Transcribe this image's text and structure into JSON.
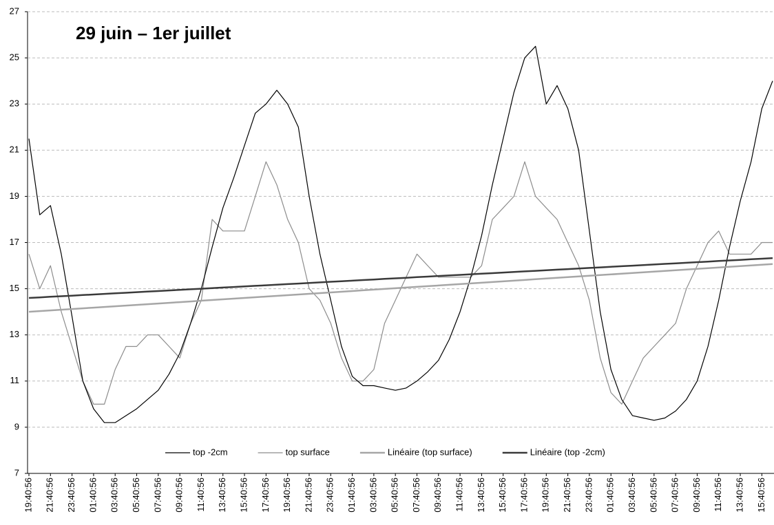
{
  "chart_data": {
    "type": "line",
    "title": "29 juin – 1er juillet",
    "categories": [
      "19:40:56",
      null,
      "21:40:56",
      null,
      "23:40:56",
      null,
      "01:40:56",
      null,
      "03:40:56",
      null,
      "05:40:56",
      null,
      "07:40:56",
      null,
      "09:40:56",
      null,
      "11:40:56",
      null,
      "13:40:56",
      null,
      "15:40:56",
      null,
      "17:40:56",
      null,
      "19:40:56",
      null,
      "21:40:56",
      null,
      "23:40:56",
      null,
      "01:40:56",
      null,
      "03:40:56",
      null,
      "05:40:56",
      null,
      "07:40:56",
      null,
      "09:40:56",
      null,
      "11:40:56",
      null,
      "13:40:56",
      null,
      "15:40:56",
      null,
      "17:40:56",
      null,
      "19:40:56",
      null,
      "21:40:56",
      null,
      "23:40:56",
      null,
      "01:40:56",
      null,
      "03:40:56",
      null,
      "05:40:56",
      null,
      "07:40:56",
      null,
      "09:40:56",
      null,
      "11:40:56",
      null,
      "13:40:56",
      null,
      "15:40:56",
      null
    ],
    "series": [
      {
        "name": "top -2cm",
        "color": "#000000",
        "line_width": 1.2,
        "values": [
          21.5,
          18.2,
          18.6,
          16.5,
          13.8,
          11,
          9.8,
          9.2,
          9.2,
          9.5,
          9.8,
          10.2,
          10.6,
          11.3,
          12.2,
          13.5,
          15,
          16.8,
          18.5,
          19.8,
          21.2,
          22.6,
          23,
          23.6,
          23,
          22,
          19,
          16.5,
          14.5,
          12.5,
          11.2,
          10.8,
          10.8,
          10.7,
          10.6,
          10.7,
          11,
          11.4,
          11.9,
          12.8,
          14,
          15.5,
          17.3,
          19.5,
          21.5,
          23.5,
          25,
          25.5,
          23,
          23.8,
          22.8,
          21,
          17.5,
          14,
          11.5,
          10.2,
          9.5,
          9.4,
          9.3,
          9.4,
          9.7,
          10.2,
          11,
          12.5,
          14.5,
          16.8,
          18.8,
          20.5,
          22.8,
          24
        ]
      },
      {
        "name": "top surface",
        "color": "#8c8c8c",
        "line_width": 1.2,
        "values": [
          16.5,
          15,
          16,
          14,
          12.5,
          11,
          10,
          10,
          11.5,
          12.5,
          12.5,
          13,
          13,
          12.5,
          12,
          13.5,
          14.5,
          18,
          17.5,
          17.5,
          17.5,
          19,
          20.5,
          19.5,
          18,
          17,
          15,
          14.5,
          13.5,
          12,
          11,
          11,
          11.5,
          13.5,
          14.5,
          15.5,
          16.5,
          16,
          15.5,
          15.5,
          15.5,
          15.5,
          16,
          18,
          18.5,
          19,
          20.5,
          19,
          18.5,
          18,
          17,
          16,
          14.5,
          12,
          10.5,
          10,
          11,
          12,
          12.5,
          13,
          13.5,
          15,
          16,
          17,
          17.5,
          16.5,
          16.5,
          16.5,
          17,
          17
        ]
      },
      {
        "name": "Linéaire (top surface)",
        "color": "#a6a6a6",
        "line_width": 2.5,
        "values": [
          14,
          14.03,
          14.06,
          14.09,
          14.12,
          14.15,
          14.18,
          14.21,
          14.24,
          14.27,
          14.3,
          14.33,
          14.36,
          14.39,
          14.42,
          14.45,
          14.48,
          14.51,
          14.54,
          14.57,
          14.6,
          14.63,
          14.66,
          14.69,
          14.72,
          14.75,
          14.78,
          14.81,
          14.84,
          14.87,
          14.9,
          14.93,
          14.96,
          14.99,
          15.02,
          15.05,
          15.08,
          15.11,
          15.14,
          15.17,
          15.2,
          15.23,
          15.26,
          15.29,
          15.32,
          15.35,
          15.38,
          15.41,
          15.44,
          15.47,
          15.5,
          15.53,
          15.56,
          15.59,
          15.62,
          15.65,
          15.68,
          15.71,
          15.74,
          15.77,
          15.8,
          15.83,
          15.86,
          15.89,
          15.92,
          15.95,
          15.98,
          16.01,
          16.04,
          16.07
        ]
      },
      {
        "name": "Linéaire (top -2cm)",
        "color": "#3a3a3a",
        "line_width": 2.5,
        "values": [
          14.6,
          14.625,
          14.65,
          14.675,
          14.7,
          14.725,
          14.75,
          14.775,
          14.8,
          14.825,
          14.85,
          14.875,
          14.9,
          14.925,
          14.95,
          14.975,
          15,
          15.025,
          15.05,
          15.075,
          15.1,
          15.125,
          15.15,
          15.175,
          15.2,
          15.225,
          15.25,
          15.275,
          15.3,
          15.325,
          15.35,
          15.375,
          15.4,
          15.425,
          15.45,
          15.475,
          15.5,
          15.525,
          15.55,
          15.575,
          15.6,
          15.625,
          15.65,
          15.675,
          15.7,
          15.725,
          15.75,
          15.775,
          15.8,
          15.825,
          15.85,
          15.875,
          15.9,
          15.925,
          15.95,
          15.975,
          16,
          16.025,
          16.05,
          16.075,
          16.1,
          16.125,
          16.15,
          16.175,
          16.2,
          16.225,
          16.25,
          16.275,
          16.3,
          16.325
        ]
      }
    ],
    "ylim": [
      7,
      27
    ],
    "yticks": [
      7,
      9,
      11,
      13,
      15,
      17,
      19,
      21,
      23,
      25,
      27
    ],
    "grid": true,
    "legend": "bottom"
  }
}
